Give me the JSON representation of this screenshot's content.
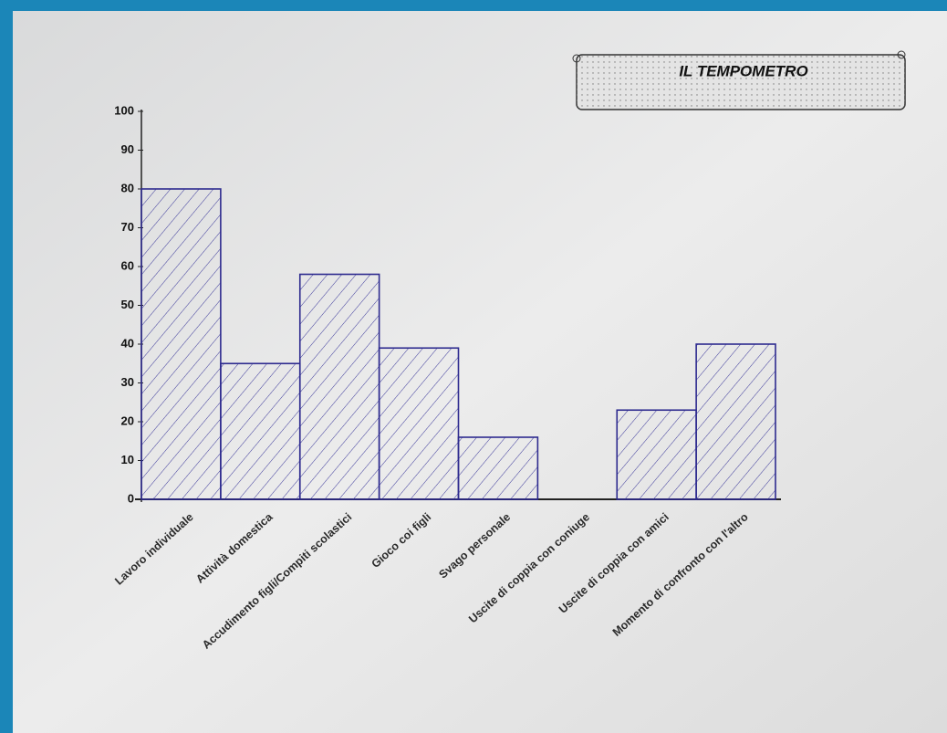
{
  "chart_data": {
    "type": "bar",
    "title": "IL TEMPOMETRO",
    "categories": [
      "Lavoro individuale",
      "Attività domestica",
      "Accudimento figli/Compiti scolastici",
      "Gioco coi figli",
      "Svago personale",
      "Uscite di coppia con coniuge",
      "Uscite di coppia con amici",
      "Momento di confronto con l'altro"
    ],
    "values": [
      80,
      35,
      58,
      39,
      16,
      0,
      23,
      40
    ],
    "color": "#2e2b8f",
    "ylim": [
      0,
      100
    ],
    "yticks": [
      0,
      10,
      20,
      30,
      40,
      50,
      60,
      70,
      80,
      90,
      100
    ]
  }
}
